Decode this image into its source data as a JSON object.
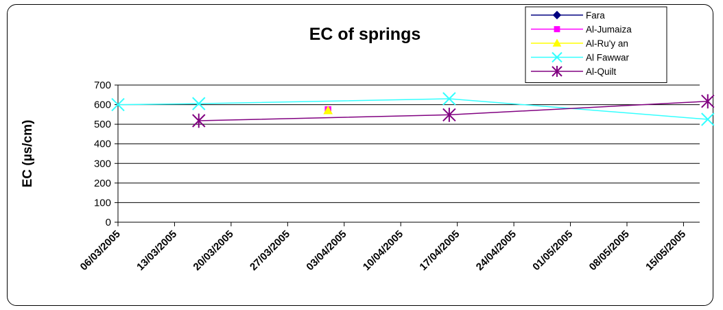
{
  "chart_data": {
    "type": "line",
    "title": "EC of springs",
    "ylabel": "EC (µs/cm)",
    "xlabel": "",
    "ylim": [
      0,
      700
    ],
    "yticks": [
      0,
      100,
      200,
      300,
      400,
      500,
      600,
      700
    ],
    "xticks": [
      "06/03/2005",
      "13/03/2005",
      "20/03/2005",
      "27/03/2005",
      "03/04/2005",
      "10/04/2005",
      "17/04/2005",
      "24/04/2005",
      "01/05/2005",
      "08/05/2005",
      "15/05/2005"
    ],
    "xlim": [
      "06/03/2005",
      "17/05/2005"
    ],
    "grid": "horizontal",
    "legend_position": "top-right",
    "series": [
      {
        "name": "Fara",
        "color": "#000080",
        "marker": "diamond",
        "points": []
      },
      {
        "name": "Al-Jumaiza",
        "color": "#ff00ff",
        "marker": "square",
        "points": [
          [
            "01/04/2005",
            575
          ]
        ]
      },
      {
        "name": "Al-Ru'y an",
        "color": "#ffff00",
        "marker": "triangle",
        "points": [
          [
            "01/04/2005",
            570
          ]
        ]
      },
      {
        "name": "Al Fawwar",
        "color": "#33ffff",
        "marker": "x",
        "points": [
          [
            "06/03/2005",
            600
          ],
          [
            "16/03/2005",
            605
          ],
          [
            "16/04/2005",
            630
          ],
          [
            "18/05/2005",
            525
          ]
        ]
      },
      {
        "name": "Al-Quilt",
        "color": "#800080",
        "marker": "star",
        "points": [
          [
            "16/03/2005",
            518
          ],
          [
            "16/04/2005",
            548
          ],
          [
            "18/05/2005",
            617
          ]
        ]
      }
    ]
  }
}
